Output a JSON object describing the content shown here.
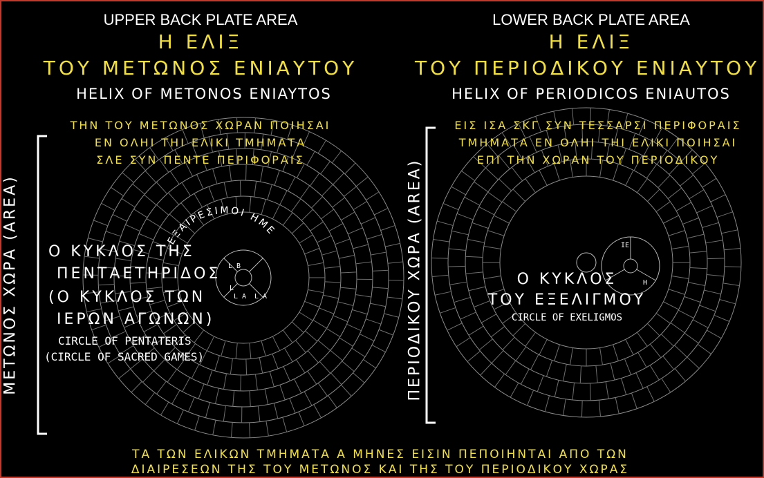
{
  "upper": {
    "header": "UPPER BACK PLATE AREA",
    "greek_title_1": "Η ΕΛΙΞ",
    "greek_title_2": "ΤΟΥ ΜΕΤΩΝΟΣ ΕΝΙΑΥΤΟΥ",
    "subtitle": "HELIX OF METONOS ENIAYTOS",
    "inscription": [
      "ΤΗΝ ΤΟΥ ΜΕΤΩΝΟΣ ΧΩΡΑΝ ΠΟΙΗΣΑΙ",
      "ΕΝ ΟΛΗΙ ΤΗΙ ΕΛΙΚΙ ΤΜΗΜΑΤΑ",
      "ΣΛΕ ΣΥΝ ΠΕΝΤΕ ΠΕΡΙΦΟΡΑΙΣ"
    ],
    "vertical_label": "ΜΕΤΩΝΟΣ ΧΩΡΑ (AREA)",
    "arc_label": "ΕΞΑΙΡΕΣΙΜΟΙ ΗΜΕΡΑΙ",
    "center_greek": [
      "Ο ΚΥΚΛΟΣ ΤΗΣ",
      "ΠΕΝΤΑΕΤΗΡΙΔΟΣ",
      "(Ο ΚΥΚΛΟΣ ΤΩΝ",
      "ΙΕΡΩΝ ΑΓΩΝΩΝ)"
    ],
    "center_english": [
      "CIRCLE OF PENTATERIS",
      "(CIRCLE OF SACRED GAMES)"
    ],
    "small_dial_labels": [
      "L B",
      "L",
      "L A",
      "L A"
    ]
  },
  "lower": {
    "header": "LOWER BACK PLATE AREA",
    "greek_title_1": "Η ΕΛΙΞ",
    "greek_title_2": "ΤΟΥ ΠΕΡΙΟΔΙΚΟΥ ΕΝΙΑΥΤΟΥ",
    "subtitle": "HELIX OF PERIODICOS ENIAUTOS",
    "inscription": [
      "ΕΙΣ ΙΣΑ ΣΚΓ ΣΥΝ ΤΕΣΣΑΡΣΙ ΠΕΡΙΦΟΡΑΙΣ",
      "ΤΜΗΜΑΤΑ ΕΝ ΟΛΗΙ ΤΗΙ ΕΛΙΚΙ ΠΟΙΗΣΑΙ",
      "ΕΠΙ ΤΗΝ ΧΩΡΑΝ ΤΟΥ ΠΕΡΙΟΔΙΚΟΥ"
    ],
    "vertical_label": "ΠΕΡΙΟΔΙΚΟΥ ΧΩΡΑ (AREA)",
    "center_greek": [
      "Ο ΚΥΚΛΟΣ",
      "ΤΟΥ ΕΞΕΛΙΓΜΟΥ"
    ],
    "center_english": [
      "CIRCLE OF EXELIGMOS"
    ],
    "small_dial_labels": [
      "ΙΕ",
      "Η"
    ]
  },
  "footer": [
    "ΤΑ ΤΩΝ ΕΛΙΚΩΝ ΤΜΗΜΑΤΑ Α ΜΗΝΕΣ ΕΙΣΙΝ ΠΕΠΟΙΗΝΤΑΙ ΑΠΟ ΤΩΝ",
    "ΔΙΑΙΡΕΣΕΩΝ ΤΗΣ ΤΟΥ ΜΕΤΩΝΟΣ ΚΑΙ ΤΗΣ ΤΟΥ ΠΕΡΙΟΔΙΚΟΥ ΧΩΡΑΣ"
  ],
  "colors": {
    "accent_yellow": "#f3e13a",
    "text_white": "#ffffff",
    "frame_red": "#c0392b",
    "background": "#000000"
  }
}
